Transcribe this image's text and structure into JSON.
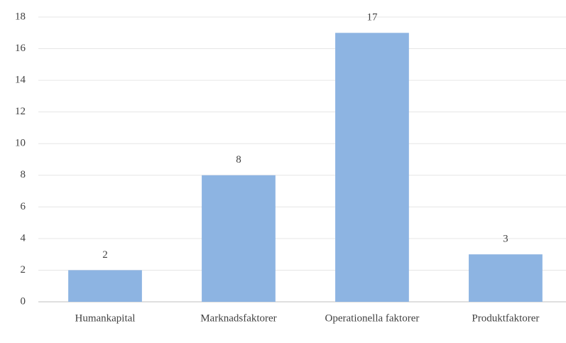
{
  "chart_data": {
    "type": "bar",
    "categories": [
      "Humankapital",
      "Marknadsfaktorer",
      "Operationella faktorer",
      "Produktfaktorer"
    ],
    "values": [
      2,
      8,
      17,
      3
    ],
    "color": "#8db4e2",
    "ylim": [
      0,
      18
    ],
    "yticks": [
      0,
      2,
      4,
      6,
      8,
      10,
      12,
      14,
      16,
      18
    ],
    "grid": true,
    "data_labels": true
  }
}
